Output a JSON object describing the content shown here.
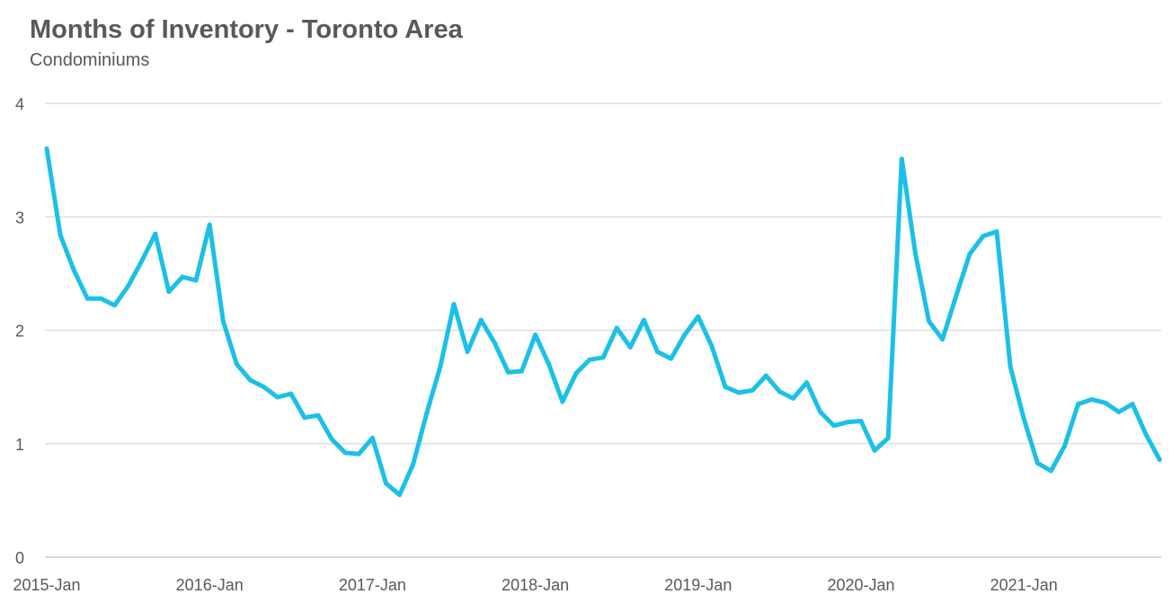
{
  "chart_data": {
    "type": "line",
    "title": "Months of Inventory - Toronto Area",
    "subtitle": "Condominiums",
    "xlabel": "",
    "ylabel": "",
    "ylim": [
      0,
      4
    ],
    "yticks": [
      "0",
      "1",
      "2",
      "3",
      "4"
    ],
    "xticks": [
      "2015-Jan",
      "2016-Jan",
      "2017-Jan",
      "2018-Jan",
      "2019-Jan",
      "2020-Jan",
      "2021-Jan"
    ],
    "x_start": "2015-Jan",
    "x_end": "2021-Nov",
    "grid": true,
    "color": "#1BC0E8",
    "series": [
      {
        "name": "Condominiums",
        "values": [
          3.6,
          2.84,
          2.53,
          2.28,
          2.28,
          2.22,
          2.39,
          2.61,
          2.85,
          2.34,
          2.47,
          2.44,
          2.93,
          2.08,
          1.7,
          1.56,
          1.5,
          1.41,
          1.44,
          1.23,
          1.25,
          1.04,
          0.92,
          0.91,
          1.05,
          0.65,
          0.55,
          0.82,
          1.27,
          1.68,
          2.23,
          1.81,
          2.09,
          1.89,
          1.63,
          1.64,
          1.96,
          1.7,
          1.37,
          1.62,
          1.74,
          1.76,
          2.02,
          1.85,
          2.09,
          1.81,
          1.75,
          1.96,
          2.12,
          1.86,
          1.5,
          1.45,
          1.47,
          1.6,
          1.46,
          1.4,
          1.54,
          1.28,
          1.16,
          1.19,
          1.2,
          0.94,
          1.05,
          3.51,
          2.68,
          2.08,
          1.92,
          2.3,
          2.67,
          2.83,
          2.87,
          1.68,
          1.22,
          0.83,
          0.76,
          0.98,
          1.35,
          1.39,
          1.36,
          1.28,
          1.35,
          1.08,
          0.86
        ]
      }
    ]
  }
}
